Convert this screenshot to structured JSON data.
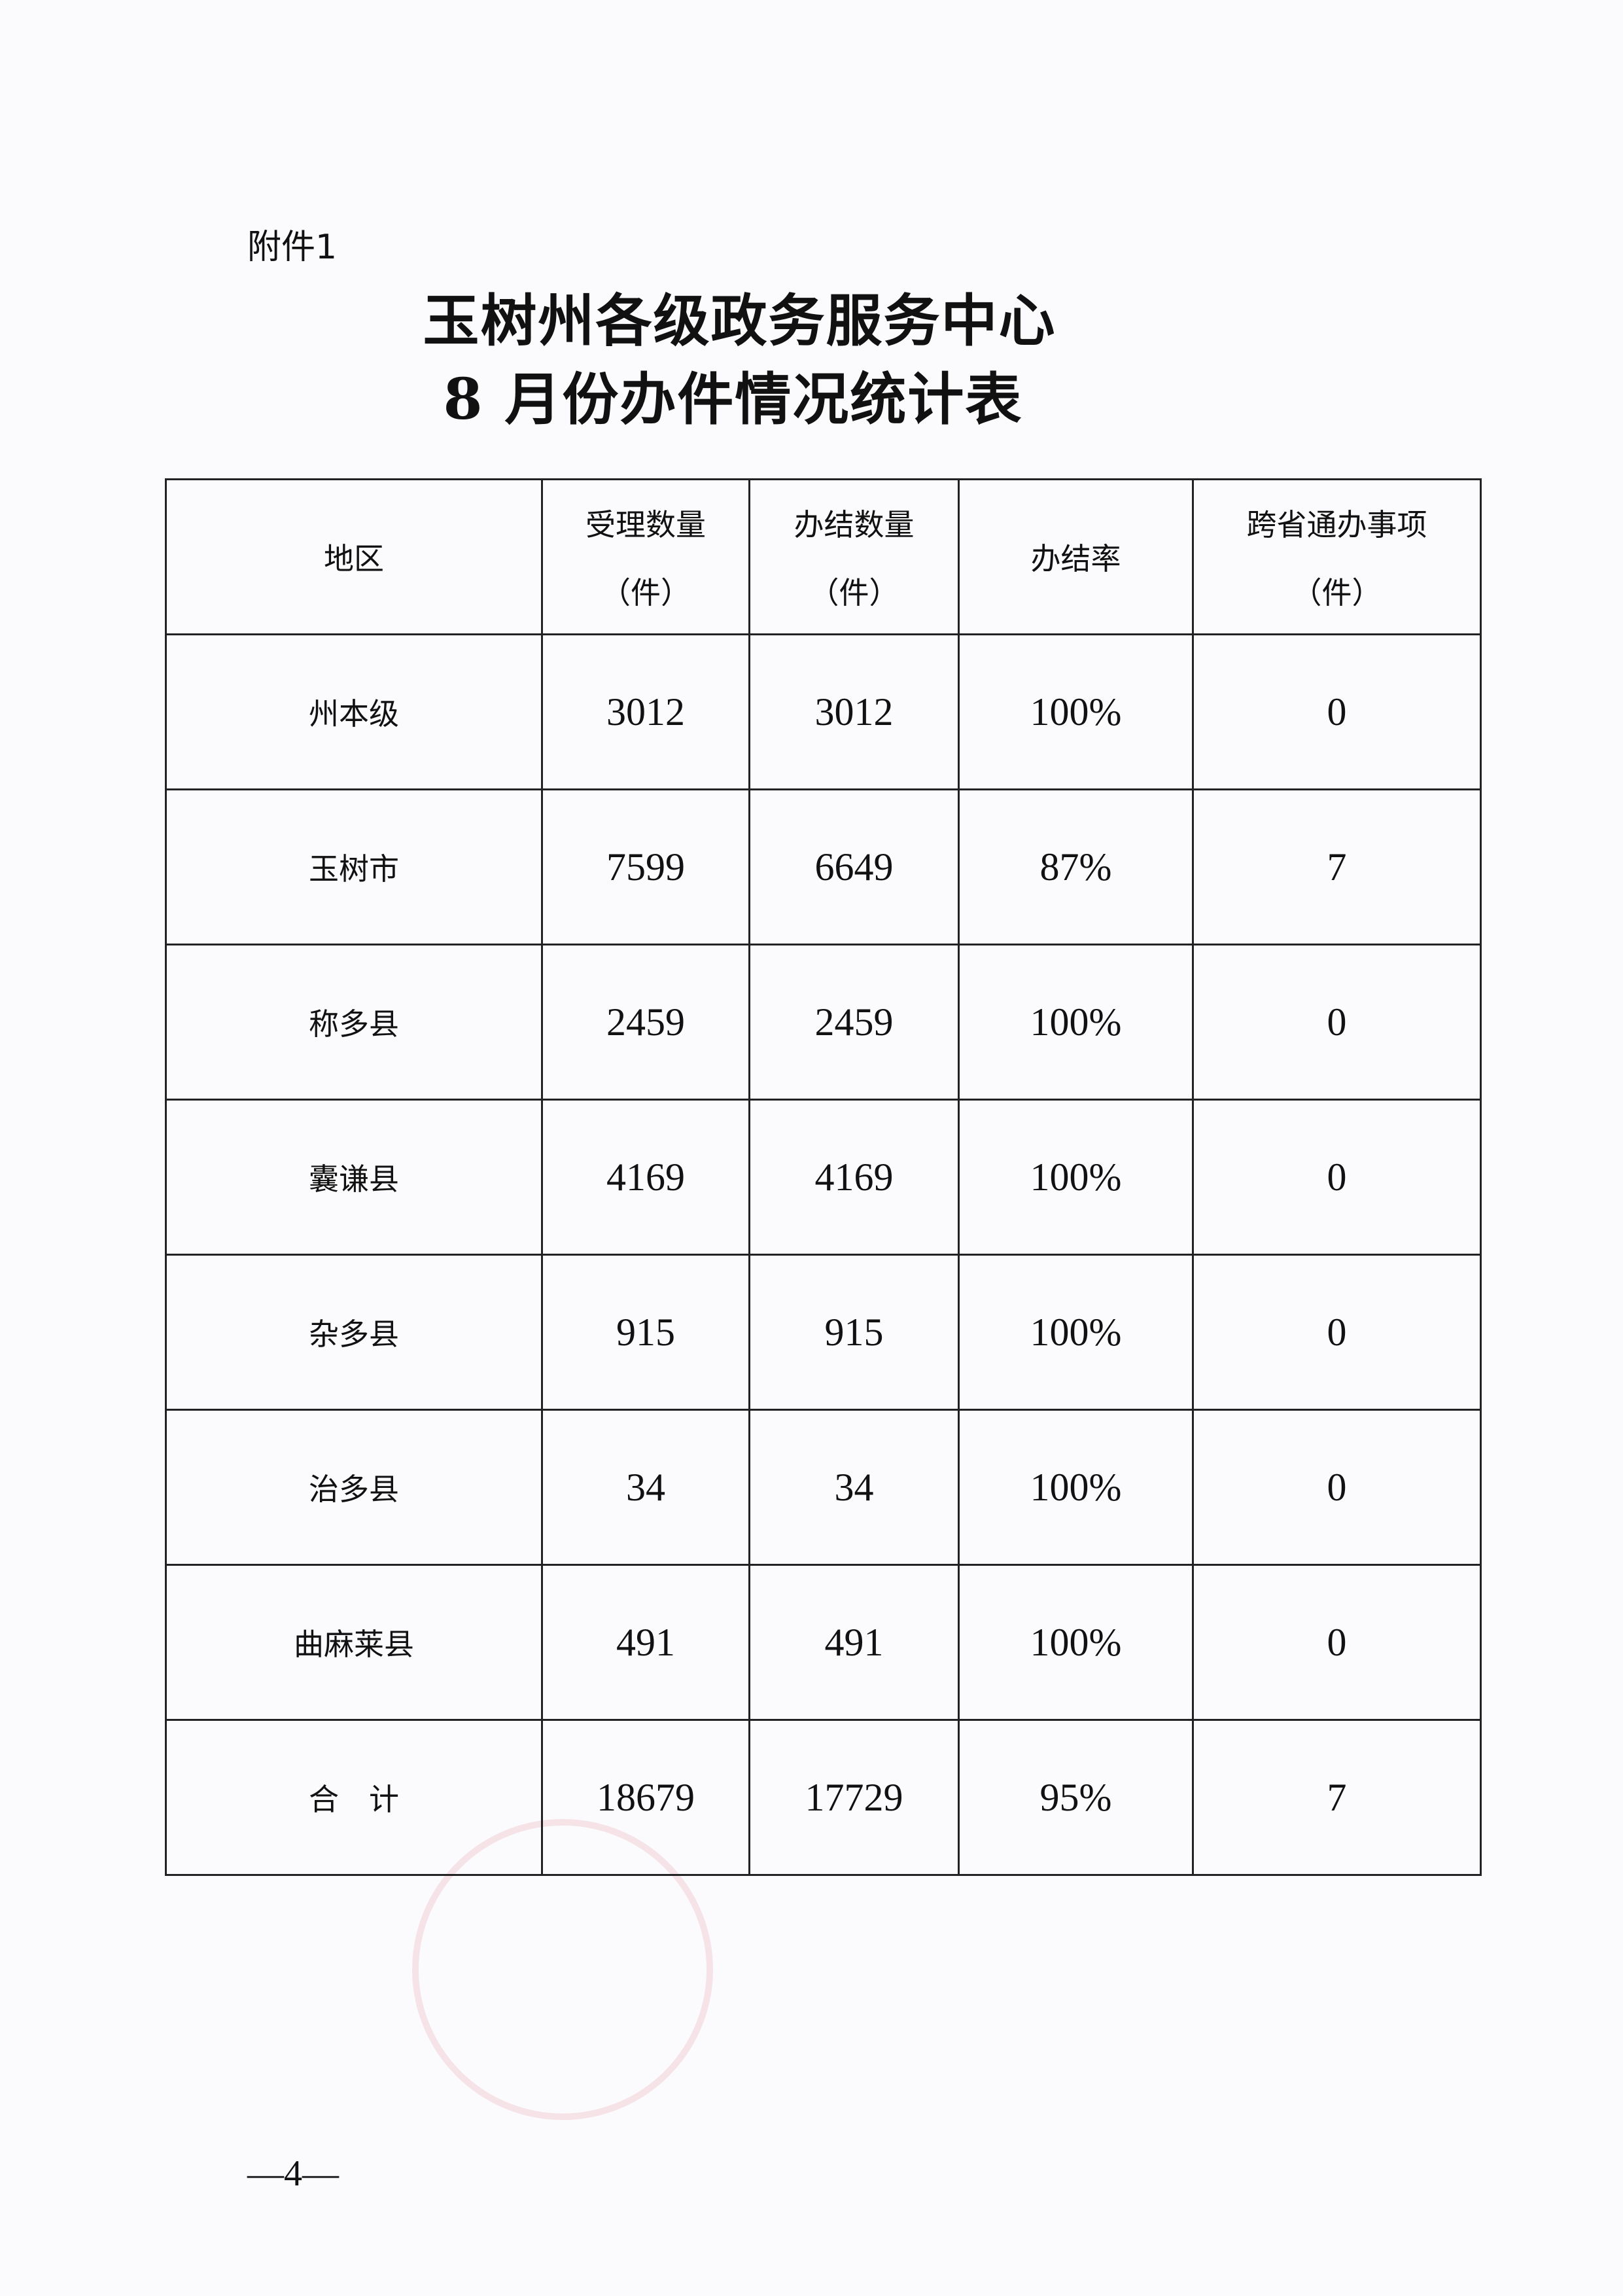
{
  "attachment_label": "附件1",
  "title_line1": "玉树州各级政务服务中心",
  "title_line2": "8 月份办件情况统计表",
  "table": {
    "headers": [
      {
        "label": "地区",
        "unit": ""
      },
      {
        "label": "受理数量",
        "unit": "（件）"
      },
      {
        "label": "办结数量",
        "unit": "（件）"
      },
      {
        "label": "办结率",
        "unit": ""
      },
      {
        "label": "跨省通办事项",
        "unit": "（件）"
      }
    ],
    "rows": [
      {
        "region": "州本级",
        "accepted": "3012",
        "completed": "3012",
        "rate": "100%",
        "cross_province": "0"
      },
      {
        "region": "玉树市",
        "accepted": "7599",
        "completed": "6649",
        "rate": "87%",
        "cross_province": "7"
      },
      {
        "region": "称多县",
        "accepted": "2459",
        "completed": "2459",
        "rate": "100%",
        "cross_province": "0"
      },
      {
        "region": "囊谦县",
        "accepted": "4169",
        "completed": "4169",
        "rate": "100%",
        "cross_province": "0"
      },
      {
        "region": "杂多县",
        "accepted": "915",
        "completed": "915",
        "rate": "100%",
        "cross_province": "0"
      },
      {
        "region": "治多县",
        "accepted": "34",
        "completed": "34",
        "rate": "100%",
        "cross_province": "0"
      },
      {
        "region": "曲麻莱县",
        "accepted": "491",
        "completed": "491",
        "rate": "100%",
        "cross_province": "0"
      },
      {
        "region": "合　计",
        "accepted": "18679",
        "completed": "17729",
        "rate": "95%",
        "cross_province": "7"
      }
    ]
  },
  "page_number": "—4—"
}
